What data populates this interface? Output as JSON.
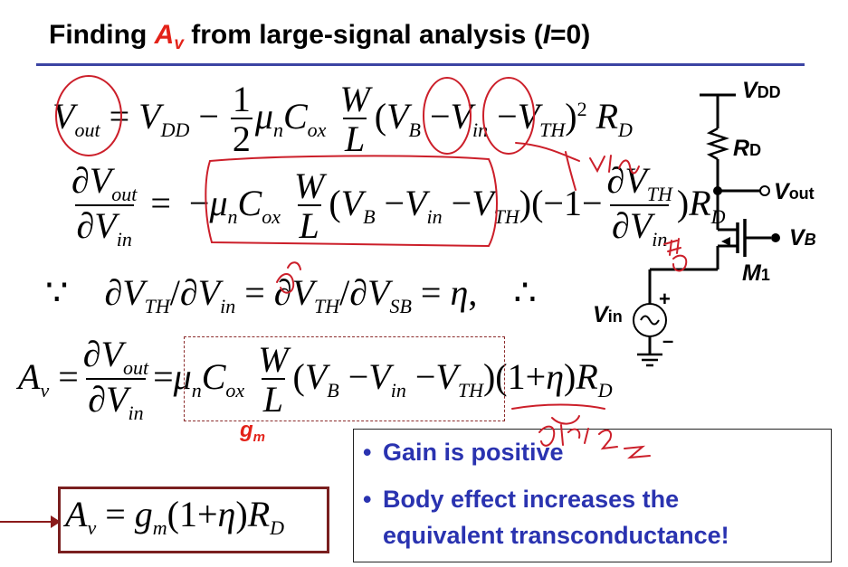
{
  "title": {
    "prefix": "Finding ",
    "symbol": "A",
    "symbol_sub": "v",
    "suffix_a": " from large-signal analysis (",
    "suffix_var": "I",
    "suffix_b": "=0)"
  },
  "gm_label": {
    "main": "g",
    "sub": "m"
  },
  "bullets": [
    "Gain is positive",
    "Body effect increases the",
    "equivalent transconductance!"
  ],
  "circuit": {
    "vdd": "V",
    "vdd_sub": "DD",
    "rd": "R",
    "rd_sub": "D",
    "vout": "V",
    "vout_sub": "out",
    "vb": "V",
    "vb_sub": "B",
    "m1": "M",
    "m1_sub": "1",
    "vin": "V",
    "vin_sub": "in",
    "plus": "+",
    "minus": "–"
  },
  "colors": {
    "title_rule": "#3b44a3",
    "accent_red": "#e32219",
    "bullet_text": "#2a33b0",
    "annotation_ink": "#cc1f2a"
  }
}
